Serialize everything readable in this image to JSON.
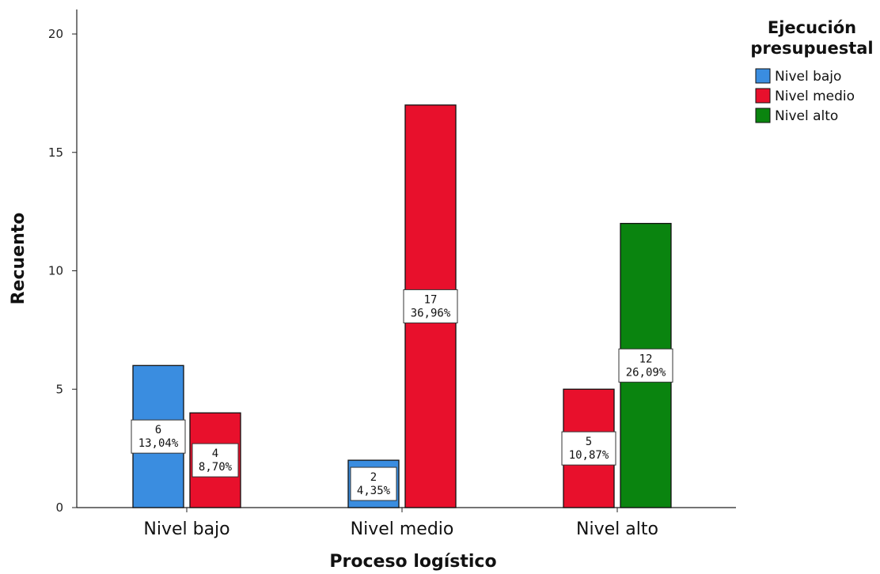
{
  "chart_data": {
    "type": "bar",
    "xlabel": "Proceso logístico",
    "ylabel": "Recuento",
    "categories": [
      "Nivel bajo",
      "Nivel medio",
      "Nivel alto"
    ],
    "ylim": [
      0,
      20
    ],
    "yticks": [
      0,
      5,
      10,
      15,
      20
    ],
    "legend": {
      "title_lines": [
        "Ejecución",
        "presupuestal"
      ],
      "placement": "right"
    },
    "series": [
      {
        "name": "Nivel bajo",
        "color": "#3a8de0",
        "values": [
          6,
          2,
          null
        ],
        "labels": [
          [
            "6",
            "13,04%"
          ],
          [
            "2",
            "4,35%"
          ],
          null
        ]
      },
      {
        "name": "Nivel medio",
        "color": "#e8102c",
        "values": [
          4,
          17,
          5
        ],
        "labels": [
          [
            "4",
            "8,70%"
          ],
          [
            "17",
            "36,96%"
          ],
          [
            "5",
            "10,87%"
          ]
        ]
      },
      {
        "name": "Nivel alto",
        "color": "#0a840f",
        "values": [
          null,
          null,
          12
        ],
        "labels": [
          null,
          null,
          [
            "12",
            "26,09%"
          ]
        ]
      }
    ]
  }
}
